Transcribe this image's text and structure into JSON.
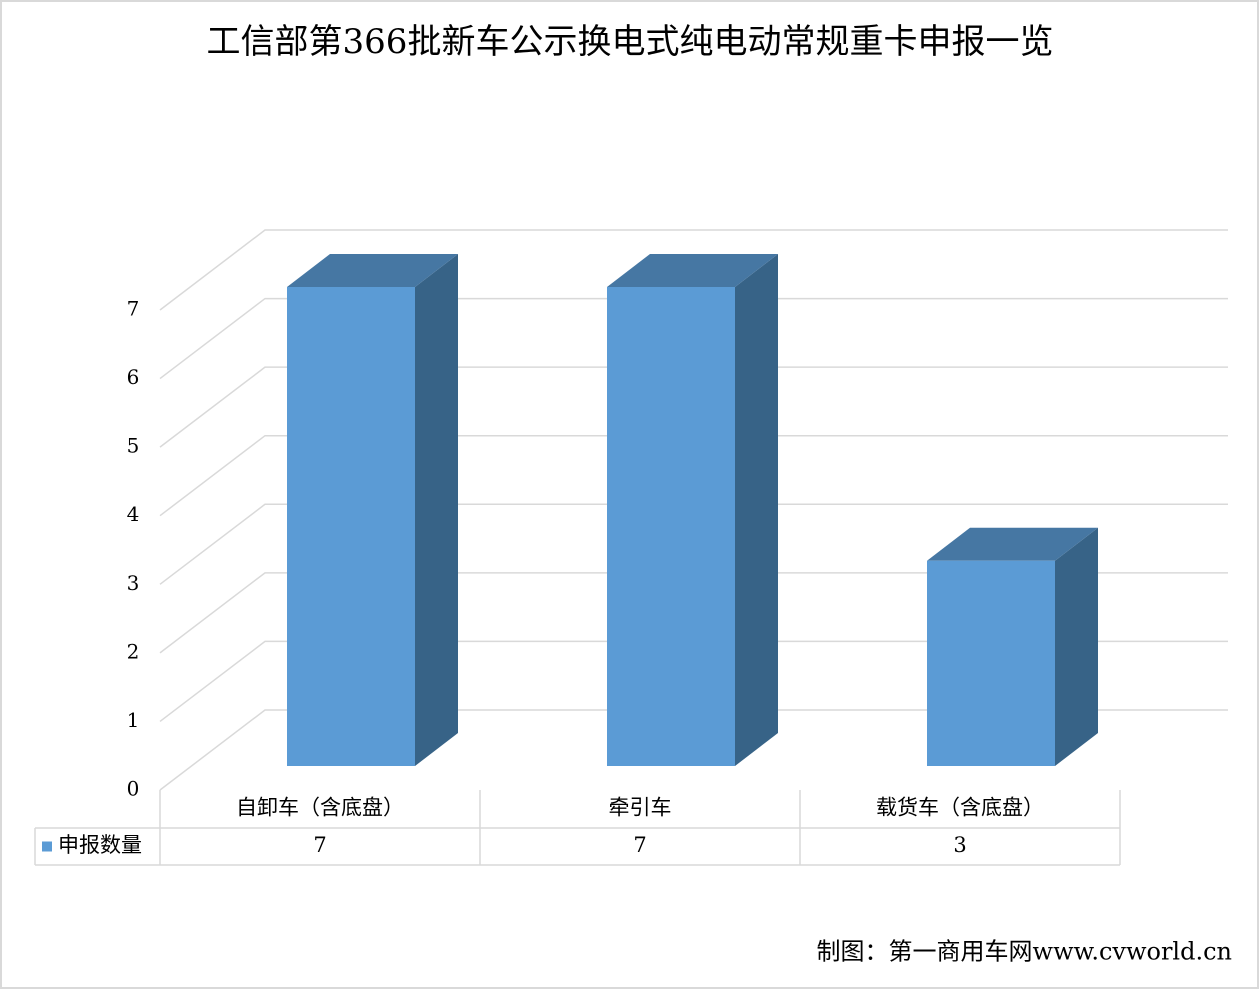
{
  "chart_data": {
    "type": "bar3d",
    "title": "工信部第366批新车公示换电式纯电动常规重卡申报一览",
    "categories": [
      "自卸车（含底盘）",
      "牵引车",
      "载货车（含底盘）"
    ],
    "series": [
      {
        "name": "申报数量",
        "color": "#5b9bd5",
        "values": [
          7,
          7,
          3
        ]
      }
    ],
    "ylim": [
      0,
      7
    ],
    "yticks": [
      0,
      1,
      2,
      3,
      4,
      5,
      6,
      7
    ],
    "grid": true,
    "source": "制图：第一商用车网www.cvworld.cn"
  }
}
